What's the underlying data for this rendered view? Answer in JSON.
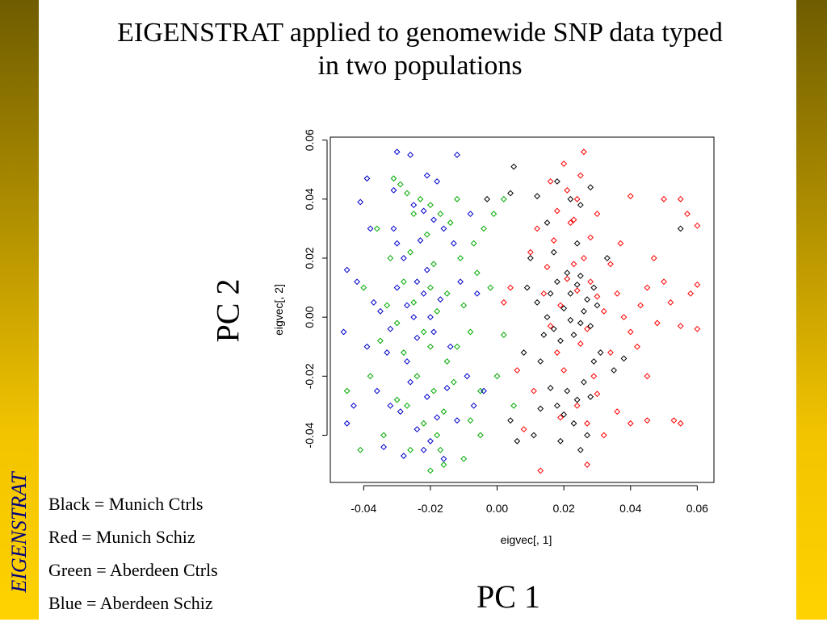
{
  "sidebar": {
    "label": "EIGENSTRAT"
  },
  "title": {
    "line1": "EIGENSTRAT applied to genomewide SNP data typed",
    "line2": "in two populations"
  },
  "pc_labels": {
    "y": "PC 2",
    "x": "PC 1"
  },
  "legend_text": [
    "Black = Munich Ctrls",
    "Red = Munich Schiz",
    "Green = Aberdeen Ctrls",
    "Blue = Aberdeen Schiz"
  ],
  "colors": {
    "frame": "#7a6400",
    "accent": "#ffd200",
    "sidebar_text": "#000080"
  },
  "chart_data": {
    "type": "scatter",
    "xlabel": "eigvec[, 1]",
    "ylabel": "eigvec[, 2]",
    "xlim": [
      -0.05,
      0.065
    ],
    "ylim": [
      -0.056,
      0.061
    ],
    "xticks": [
      -0.04,
      -0.02,
      0.0,
      0.02,
      0.04,
      0.06
    ],
    "xtick_labels": [
      "-0.04",
      "-0.02",
      "0.00",
      "0.02",
      "0.04",
      "0.06"
    ],
    "yticks": [
      -0.04,
      -0.02,
      0.0,
      0.02,
      0.04,
      0.06
    ],
    "ytick_labels": [
      "-0.04",
      "-0.02",
      "0.00",
      "0.02",
      "0.04",
      "0.06"
    ],
    "series": [
      {
        "color": "#000000",
        "points": [
          [
            0.02,
            0.003
          ],
          [
            0.022,
            0.008
          ],
          [
            0.025,
            -0.002
          ],
          [
            0.018,
            0.012
          ],
          [
            0.027,
            0.006
          ],
          [
            0.015,
            0.0
          ],
          [
            0.023,
            -0.006
          ],
          [
            0.029,
            0.01
          ],
          [
            0.017,
            -0.004
          ],
          [
            0.021,
            0.015
          ],
          [
            0.026,
            0.002
          ],
          [
            0.012,
            0.005
          ],
          [
            0.024,
            0.011
          ],
          [
            0.019,
            -0.008
          ],
          [
            0.028,
            -0.003
          ],
          [
            0.016,
            0.008
          ],
          [
            0.022,
            -0.001
          ],
          [
            0.03,
            0.004
          ],
          [
            0.014,
            -0.006
          ],
          [
            0.025,
            0.014
          ],
          [
            0.021,
            -0.025
          ],
          [
            0.024,
            -0.028
          ],
          [
            0.018,
            -0.03
          ],
          [
            0.026,
            -0.022
          ],
          [
            0.02,
            -0.033
          ],
          [
            0.028,
            -0.027
          ],
          [
            0.016,
            -0.024
          ],
          [
            0.023,
            -0.036
          ],
          [
            0.013,
            -0.031
          ],
          [
            0.027,
            -0.04
          ],
          [
            0.019,
            -0.042
          ],
          [
            0.025,
            -0.045
          ],
          [
            0.015,
            0.032
          ],
          [
            0.022,
            0.04
          ],
          [
            0.018,
            0.046
          ],
          [
            0.025,
            0.038
          ],
          [
            0.012,
            0.041
          ],
          [
            0.028,
            0.044
          ],
          [
            0.005,
            0.051
          ],
          [
            0.004,
            0.042
          ],
          [
            -0.003,
            0.04
          ],
          [
            0.009,
            0.01
          ],
          [
            0.008,
            -0.012
          ],
          [
            0.004,
            -0.035
          ],
          [
            0.006,
            -0.042
          ],
          [
            0.01,
            0.02
          ],
          [
            0.031,
            -0.012
          ],
          [
            0.033,
            0.02
          ],
          [
            0.035,
            -0.018
          ],
          [
            0.038,
            -0.014
          ],
          [
            0.013,
            -0.015
          ],
          [
            0.017,
            0.022
          ],
          [
            0.024,
            0.025
          ],
          [
            0.029,
            -0.015
          ],
          [
            0.011,
            -0.04
          ],
          [
            0.055,
            0.03
          ]
        ]
      },
      {
        "color": "#ff0000",
        "points": [
          [
            0.019,
            0.004
          ],
          [
            0.024,
            0.009
          ],
          [
            0.027,
            -0.004
          ],
          [
            0.021,
            0.013
          ],
          [
            0.03,
            0.007
          ],
          [
            0.016,
            -0.003
          ],
          [
            0.025,
            -0.009
          ],
          [
            0.032,
            0.002
          ],
          [
            0.014,
            0.008
          ],
          [
            0.023,
            0.018
          ],
          [
            0.028,
            0.012
          ],
          [
            0.018,
            -0.012
          ],
          [
            0.026,
            0.02
          ],
          [
            0.02,
            -0.018
          ],
          [
            0.029,
            -0.02
          ],
          [
            0.017,
            0.026
          ],
          [
            0.022,
            0.032
          ],
          [
            0.024,
            -0.03
          ],
          [
            0.019,
            -0.034
          ],
          [
            0.027,
            -0.036
          ],
          [
            0.021,
            0.043
          ],
          [
            0.018,
            0.036
          ],
          [
            0.025,
            0.048
          ],
          [
            0.023,
            0.033
          ],
          [
            0.026,
            0.056
          ],
          [
            0.016,
            0.046
          ],
          [
            0.012,
            0.03
          ],
          [
            0.01,
            0.022
          ],
          [
            0.028,
            0.027
          ],
          [
            0.03,
            0.035
          ],
          [
            0.034,
            0.018
          ],
          [
            0.036,
            0.008
          ],
          [
            0.038,
            0.0
          ],
          [
            0.04,
            -0.005
          ],
          [
            0.043,
            0.004
          ],
          [
            0.045,
            0.01
          ],
          [
            0.048,
            -0.002
          ],
          [
            0.05,
            0.012
          ],
          [
            0.052,
            0.005
          ],
          [
            0.055,
            -0.003
          ],
          [
            0.058,
            0.008
          ],
          [
            0.06,
            0.011
          ],
          [
            0.047,
            0.02
          ],
          [
            0.05,
            0.04
          ],
          [
            0.055,
            0.04
          ],
          [
            0.057,
            0.035
          ],
          [
            0.06,
            0.031
          ],
          [
            0.053,
            -0.035
          ],
          [
            0.055,
            -0.036
          ],
          [
            0.045,
            -0.035
          ],
          [
            0.036,
            -0.032
          ],
          [
            0.04,
            -0.036
          ],
          [
            0.027,
            -0.05
          ],
          [
            0.013,
            -0.052
          ],
          [
            0.008,
            -0.038
          ],
          [
            0.006,
            -0.018
          ],
          [
            0.004,
            0.01
          ],
          [
            0.002,
            0.005
          ],
          [
            0.03,
            -0.026
          ],
          [
            0.034,
            -0.012
          ],
          [
            0.042,
            -0.01
          ],
          [
            0.037,
            0.025
          ],
          [
            0.04,
            0.041
          ],
          [
            0.015,
            0.017
          ],
          [
            0.011,
            -0.025
          ],
          [
            0.032,
            -0.04
          ],
          [
            0.024,
            0.04
          ],
          [
            0.02,
            0.052
          ],
          [
            0.06,
            -0.004
          ],
          [
            0.045,
            -0.02
          ]
        ]
      },
      {
        "color": "#00aa00",
        "points": [
          [
            -0.025,
            0.005
          ],
          [
            -0.02,
            0.01
          ],
          [
            -0.03,
            -0.002
          ],
          [
            -0.018,
            0.002
          ],
          [
            -0.028,
            0.012
          ],
          [
            -0.022,
            -0.005
          ],
          [
            -0.015,
            0.008
          ],
          [
            -0.033,
            0.004
          ],
          [
            -0.019,
            0.018
          ],
          [
            -0.026,
            0.022
          ],
          [
            -0.021,
            0.028
          ],
          [
            -0.017,
            0.035
          ],
          [
            -0.023,
            0.04
          ],
          [
            -0.029,
            0.045
          ],
          [
            -0.014,
            0.032
          ],
          [
            -0.02,
            0.038
          ],
          [
            -0.024,
            -0.02
          ],
          [
            -0.019,
            -0.025
          ],
          [
            -0.027,
            -0.03
          ],
          [
            -0.016,
            -0.032
          ],
          [
            -0.022,
            -0.036
          ],
          [
            -0.03,
            -0.028
          ],
          [
            -0.013,
            -0.022
          ],
          [
            -0.018,
            -0.04
          ],
          [
            -0.026,
            -0.045
          ],
          [
            -0.012,
            -0.01
          ],
          [
            -0.01,
            0.004
          ],
          [
            -0.008,
            -0.005
          ],
          [
            -0.006,
            0.015
          ],
          [
            -0.004,
            0.03
          ],
          [
            -0.005,
            -0.025
          ],
          [
            -0.008,
            -0.035
          ],
          [
            -0.034,
            -0.04
          ],
          [
            -0.038,
            -0.02
          ],
          [
            -0.04,
            0.01
          ],
          [
            -0.036,
            0.03
          ],
          [
            -0.031,
            0.047
          ],
          [
            -0.045,
            -0.025
          ],
          [
            -0.041,
            -0.045
          ],
          [
            -0.02,
            -0.052
          ],
          [
            -0.016,
            -0.05
          ],
          [
            -0.01,
            -0.048
          ],
          [
            -0.005,
            -0.04
          ],
          [
            0.0,
            -0.02
          ],
          [
            0.002,
            -0.006
          ],
          [
            -0.002,
            0.01
          ],
          [
            -0.035,
            -0.008
          ],
          [
            -0.015,
            -0.015
          ],
          [
            -0.025,
            0.035
          ],
          [
            -0.011,
            0.02
          ],
          [
            -0.007,
            0.025
          ],
          [
            -0.001,
            0.035
          ],
          [
            0.005,
            -0.03
          ],
          [
            0.002,
            0.04
          ],
          [
            -0.028,
            -0.012
          ],
          [
            -0.032,
            0.02
          ],
          [
            -0.02,
            -0.01
          ],
          [
            -0.012,
            0.04
          ],
          [
            -0.027,
            0.042
          ],
          [
            -0.017,
            -0.045
          ]
        ]
      },
      {
        "color": "#0000cc",
        "points": [
          [
            -0.027,
            0.004
          ],
          [
            -0.022,
            0.008
          ],
          [
            -0.032,
            -0.004
          ],
          [
            -0.02,
            0.0
          ],
          [
            -0.03,
            0.01
          ],
          [
            -0.024,
            -0.007
          ],
          [
            -0.017,
            0.006
          ],
          [
            -0.035,
            0.002
          ],
          [
            -0.021,
            0.016
          ],
          [
            -0.028,
            0.02
          ],
          [
            -0.023,
            0.026
          ],
          [
            -0.019,
            0.033
          ],
          [
            -0.025,
            0.038
          ],
          [
            -0.031,
            0.043
          ],
          [
            -0.016,
            0.03
          ],
          [
            -0.022,
            0.036
          ],
          [
            -0.026,
            -0.022
          ],
          [
            -0.021,
            -0.027
          ],
          [
            -0.029,
            -0.032
          ],
          [
            -0.018,
            -0.034
          ],
          [
            -0.024,
            -0.038
          ],
          [
            -0.032,
            -0.03
          ],
          [
            -0.015,
            -0.024
          ],
          [
            -0.02,
            -0.042
          ],
          [
            -0.028,
            -0.047
          ],
          [
            -0.033,
            -0.012
          ],
          [
            -0.037,
            0.005
          ],
          [
            -0.039,
            -0.01
          ],
          [
            -0.042,
            0.012
          ],
          [
            -0.045,
            0.016
          ],
          [
            -0.046,
            -0.005
          ],
          [
            -0.043,
            -0.03
          ],
          [
            -0.045,
            -0.036
          ],
          [
            -0.038,
            0.03
          ],
          [
            -0.041,
            0.039
          ],
          [
            -0.039,
            0.047
          ],
          [
            -0.03,
            0.056
          ],
          [
            -0.026,
            0.055
          ],
          [
            -0.021,
            0.048
          ],
          [
            -0.012,
            0.055
          ],
          [
            -0.014,
            -0.01
          ],
          [
            -0.011,
            0.012
          ],
          [
            -0.009,
            -0.02
          ],
          [
            -0.007,
            -0.03
          ],
          [
            -0.004,
            -0.025
          ],
          [
            -0.006,
            0.008
          ],
          [
            -0.018,
            0.046
          ],
          [
            -0.008,
            0.035
          ],
          [
            -0.027,
            -0.015
          ],
          [
            -0.03,
            0.025
          ],
          [
            -0.022,
            -0.045
          ],
          [
            -0.016,
            -0.048
          ],
          [
            -0.034,
            -0.044
          ],
          [
            -0.012,
            -0.035
          ],
          [
            -0.025,
            0.0
          ],
          [
            -0.019,
            -0.005
          ],
          [
            -0.031,
            0.03
          ],
          [
            -0.024,
            0.012
          ],
          [
            -0.036,
            -0.025
          ],
          [
            -0.013,
            0.025
          ]
        ]
      }
    ]
  }
}
